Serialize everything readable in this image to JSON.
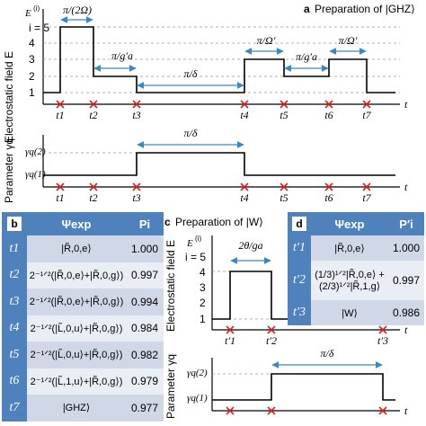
{
  "panel_a": {
    "letter": "a",
    "title": "Preparation of |GHZ⟩",
    "ylabel": "Electrostatic field E",
    "e_label": "E",
    "e_sup": "(i)",
    "i_label": "i = 5",
    "yticks": [
      "4",
      "3",
      "2",
      "1"
    ],
    "t_axis": "t",
    "durations": [
      "π/(2Ω)",
      "π/g′a",
      "π/δ",
      "π/Ω′",
      "π/g′a",
      "π/Ω′"
    ],
    "time_marks": [
      "t1",
      "t2",
      "t3",
      "t4",
      "t5",
      "t6",
      "t7"
    ],
    "param_label": "Parameter γq",
    "gamma2": "γq(2)",
    "gamma1": "γq(1)",
    "gamma_duration": "π/δ"
  },
  "panel_b": {
    "letter": "b",
    "col_psi": "Ψexp",
    "col_p": "Pi",
    "rows": [
      {
        "t": "t1",
        "psi": "|R̃,0,e⟩",
        "p": "1.000"
      },
      {
        "t": "t2",
        "psi": "2⁻¹ᐟ²(|R̃,0,e⟩+|R̃,0,g⟩)",
        "p": "0.997"
      },
      {
        "t": "t3",
        "psi": "2⁻¹ᐟ²(|R̃,0,e⟩+|R̃,0,g⟩)",
        "p": "0.994"
      },
      {
        "t": "t4",
        "psi": "2⁻¹ᐟ²(|L̃,0,u⟩+|R̃,0,g⟩)",
        "p": "0.984"
      },
      {
        "t": "t5",
        "psi": "2⁻¹ᐟ²(|L̃,0,u⟩+|R̃,0,g⟩)",
        "p": "0.982"
      },
      {
        "t": "t6",
        "psi": "2⁻¹ᐟ²(|L̃,1,u⟩+|R̃,0,g⟩)",
        "p": "0.979"
      },
      {
        "t": "t7",
        "psi": "|GHZ⟩",
        "p": "0.977"
      }
    ]
  },
  "panel_c": {
    "letter": "c",
    "title": "Preparation of |W⟩",
    "ylabel": "Electrostatic field E",
    "e_label": "E",
    "e_sup": "(i)",
    "i_label": "i = 5",
    "yticks": [
      "4",
      "3",
      "2",
      "1"
    ],
    "t_axis": "t",
    "duration": "2θ/ga",
    "time_marks": [
      "t′1",
      "t′2",
      "t′3"
    ],
    "param_label": "Parameter γq",
    "gamma2": "γq(2)",
    "gamma1": "γq(1)",
    "gamma_duration": "π/δ"
  },
  "panel_d": {
    "letter": "d",
    "col_psi": "Ψexp",
    "col_p": "P′i",
    "rows": [
      {
        "t": "t′1",
        "psi": "|R̃,0,e⟩",
        "p": "1.000"
      },
      {
        "t": "t′2",
        "psi": "(1/3)¹ᐟ²|R̃,0,e⟩ +(2/3)¹ᐟ²|R̃,1,g⟩",
        "p": "0.997"
      },
      {
        "t": "t′3",
        "psi": "|W⟩",
        "p": "0.986"
      }
    ]
  },
  "colors": {
    "arrow": "#3a87c8",
    "cross": "#e02020",
    "header": "#4f81bd",
    "rowA": "#d0d8e8",
    "rowB": "#e9edf4"
  }
}
